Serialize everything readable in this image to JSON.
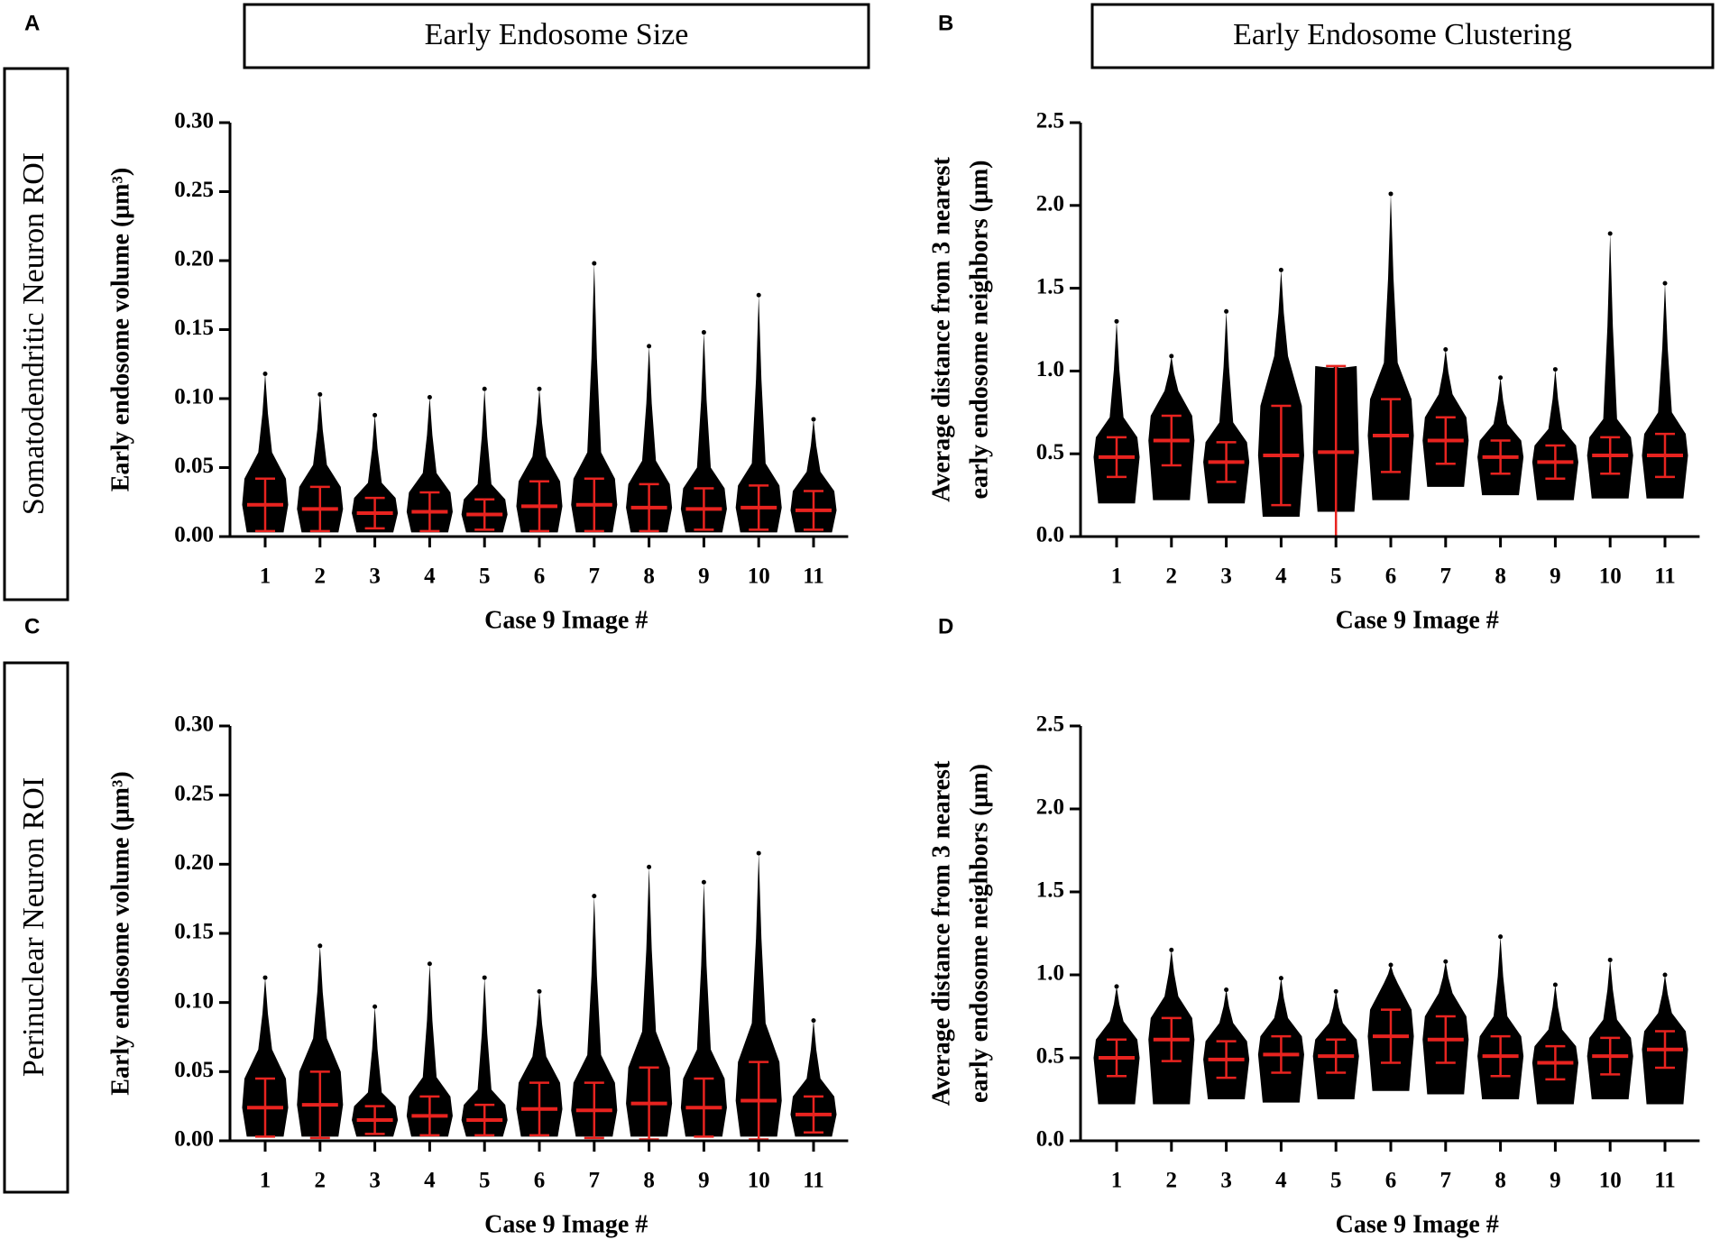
{
  "columns": [
    "Early Endosome Size",
    "Early Endosome Clustering"
  ],
  "rows": [
    "Somatodendritic Neuron ROI",
    "Perinuclear Neuron ROI"
  ],
  "chart_data": [
    {
      "type": "strip",
      "panel": "A",
      "ylabel": [
        "Early endosome volume (μm³)"
      ],
      "xlabel": "Case 9 Image #",
      "categories": [
        "1",
        "2",
        "3",
        "4",
        "5",
        "6",
        "7",
        "8",
        "9",
        "10",
        "11"
      ],
      "values": [
        0.023,
        0.02,
        0.017,
        0.018,
        0.016,
        0.022,
        0.023,
        0.021,
        0.02,
        0.021,
        0.019
      ],
      "errors": [
        0.019,
        0.016,
        0.011,
        0.014,
        0.011,
        0.018,
        0.019,
        0.017,
        0.015,
        0.016,
        0.014
      ],
      "mins": [
        0.003,
        0.003,
        0.003,
        0.003,
        0.003,
        0.003,
        0.003,
        0.003,
        0.003,
        0.003,
        0.003
      ],
      "maxs": [
        0.118,
        0.103,
        0.088,
        0.101,
        0.107,
        0.107,
        0.198,
        0.138,
        0.148,
        0.175,
        0.085
      ],
      "color": "#000000",
      "error_color": "#e8231f",
      "ylim": [
        0,
        0.3
      ],
      "yticks": [
        {
          "value": 0,
          "label": "0.00"
        },
        0.05,
        {
          "value": 0.1,
          "label": "0.10"
        },
        0.15,
        {
          "value": 0.2,
          "label": "0.20"
        },
        0.25,
        {
          "value": 0.3,
          "label": "0.30"
        }
      ]
    },
    {
      "type": "strip",
      "panel": "B",
      "ylabel": [
        "Average distance from 3 nearest",
        "early endosome neighbors (μm)"
      ],
      "xlabel": "Case 9 Image #",
      "categories": [
        "1",
        "2",
        "3",
        "4",
        "5",
        "6",
        "7",
        "8",
        "9",
        "10",
        "11"
      ],
      "values": [
        0.48,
        0.58,
        0.45,
        0.49,
        0.51,
        0.61,
        0.58,
        0.48,
        0.45,
        0.49,
        0.49
      ],
      "errors": [
        0.12,
        0.15,
        0.12,
        0.3,
        0.52,
        0.22,
        0.14,
        0.1,
        0.1,
        0.11,
        0.13
      ],
      "mins": [
        0.2,
        0.22,
        0.2,
        0.12,
        0.15,
        0.22,
        0.3,
        0.25,
        0.22,
        0.23,
        0.23
      ],
      "maxs": [
        1.3,
        1.09,
        1.36,
        1.61,
        1.02,
        2.07,
        1.13,
        0.96,
        1.01,
        1.83,
        1.53
      ],
      "color": "#000000",
      "error_color": "#e8231f",
      "ylim": [
        0,
        2.5
      ],
      "yticks": [
        {
          "value": 0,
          "label": "0.0"
        },
        0.5,
        {
          "value": 1,
          "label": "1.0"
        },
        1.5,
        {
          "value": 2,
          "label": "2.0"
        },
        2.5
      ]
    },
    {
      "type": "strip",
      "panel": "C",
      "ylabel": [
        "Early endosome volume (μm³)"
      ],
      "xlabel": "Case 9 Image #",
      "categories": [
        "1",
        "2",
        "3",
        "4",
        "5",
        "6",
        "7",
        "8",
        "9",
        "10",
        "11"
      ],
      "values": [
        0.024,
        0.026,
        0.015,
        0.018,
        0.015,
        0.023,
        0.022,
        0.027,
        0.024,
        0.029,
        0.019
      ],
      "errors": [
        0.021,
        0.024,
        0.01,
        0.014,
        0.011,
        0.019,
        0.02,
        0.026,
        0.021,
        0.028,
        0.013
      ],
      "mins": [
        0.003,
        0.003,
        0.003,
        0.003,
        0.003,
        0.003,
        0.003,
        0.003,
        0.003,
        0.003,
        0.003
      ],
      "maxs": [
        0.118,
        0.141,
        0.097,
        0.128,
        0.118,
        0.108,
        0.177,
        0.198,
        0.187,
        0.208,
        0.087
      ],
      "color": "#000000",
      "error_color": "#e8231f",
      "ylim": [
        0,
        0.3
      ],
      "yticks": [
        {
          "value": 0,
          "label": "0.00"
        },
        0.05,
        {
          "value": 0.1,
          "label": "0.10"
        },
        0.15,
        {
          "value": 0.2,
          "label": "0.20"
        },
        0.25,
        {
          "value": 0.3,
          "label": "0.30"
        }
      ]
    },
    {
      "type": "strip",
      "panel": "D",
      "ylabel": [
        "Average distance from 3 nearest",
        "early endosome neighbors (μm)"
      ],
      "xlabel": "Case 9 Image #",
      "categories": [
        "1",
        "2",
        "3",
        "4",
        "5",
        "6",
        "7",
        "8",
        "9",
        "10",
        "11"
      ],
      "values": [
        0.5,
        0.61,
        0.49,
        0.52,
        0.51,
        0.63,
        0.61,
        0.51,
        0.47,
        0.51,
        0.55
      ],
      "errors": [
        0.11,
        0.13,
        0.11,
        0.11,
        0.1,
        0.16,
        0.14,
        0.12,
        0.1,
        0.11,
        0.11
      ],
      "mins": [
        0.22,
        0.22,
        0.25,
        0.23,
        0.25,
        0.3,
        0.28,
        0.25,
        0.22,
        0.25,
        0.22
      ],
      "maxs": [
        0.93,
        1.15,
        0.91,
        0.98,
        0.9,
        1.06,
        1.08,
        1.23,
        0.94,
        1.09,
        1.0
      ],
      "color": "#000000",
      "error_color": "#e8231f",
      "ylim": [
        0,
        2.5
      ],
      "yticks": [
        {
          "value": 0,
          "label": "0.0"
        },
        0.5,
        {
          "value": 1,
          "label": "1.0"
        },
        1.5,
        {
          "value": 2,
          "label": "2.0"
        },
        2.5
      ]
    }
  ]
}
